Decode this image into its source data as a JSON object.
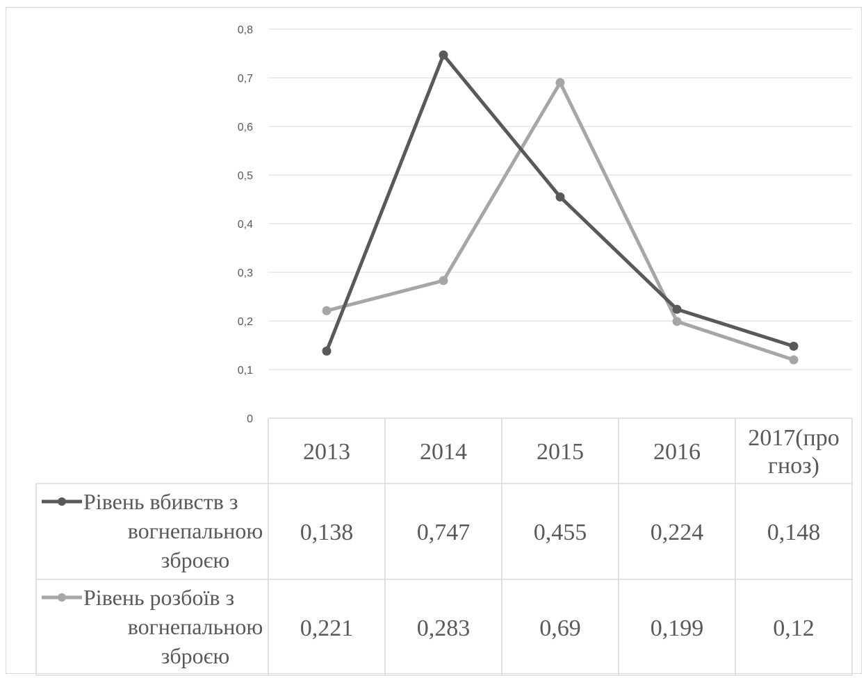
{
  "chart_data": {
    "type": "line",
    "categories": [
      "2013",
      "2014",
      "2015",
      "2016",
      "2017(прогноз)"
    ],
    "category_lines": [
      [
        "2013"
      ],
      [
        "2014"
      ],
      [
        "2015"
      ],
      [
        "2016"
      ],
      [
        "2017(про",
        "гноз)"
      ]
    ],
    "ylim": [
      0,
      0.8
    ],
    "yticks": [
      "0",
      "0,1",
      "0,2",
      "0,3",
      "0,4",
      "0,5",
      "0,6",
      "0,7",
      "0,8"
    ],
    "grid": true,
    "legend": "data-table",
    "series": [
      {
        "name": "Рівень вбивств з вогнепальною зброєю",
        "name_lines": [
          "Рівень вбивств з",
          "вогнепальною",
          "зброєю"
        ],
        "values": [
          0.138,
          0.747,
          0.455,
          0.224,
          0.148
        ],
        "labels": [
          "0,138",
          "0,747",
          "0,455",
          "0,224",
          "0,148"
        ],
        "color": "#595959"
      },
      {
        "name": "Рівень розбоїв з вогнепальною зброєю",
        "name_lines": [
          "Рівень розбоїв з",
          "вогнепальною",
          "зброєю"
        ],
        "values": [
          0.221,
          0.283,
          0.69,
          0.199,
          0.12
        ],
        "labels": [
          "0,221",
          "0,283",
          "0,69",
          "0,199",
          "0,12"
        ],
        "color": "#a6a6a6"
      }
    ]
  }
}
